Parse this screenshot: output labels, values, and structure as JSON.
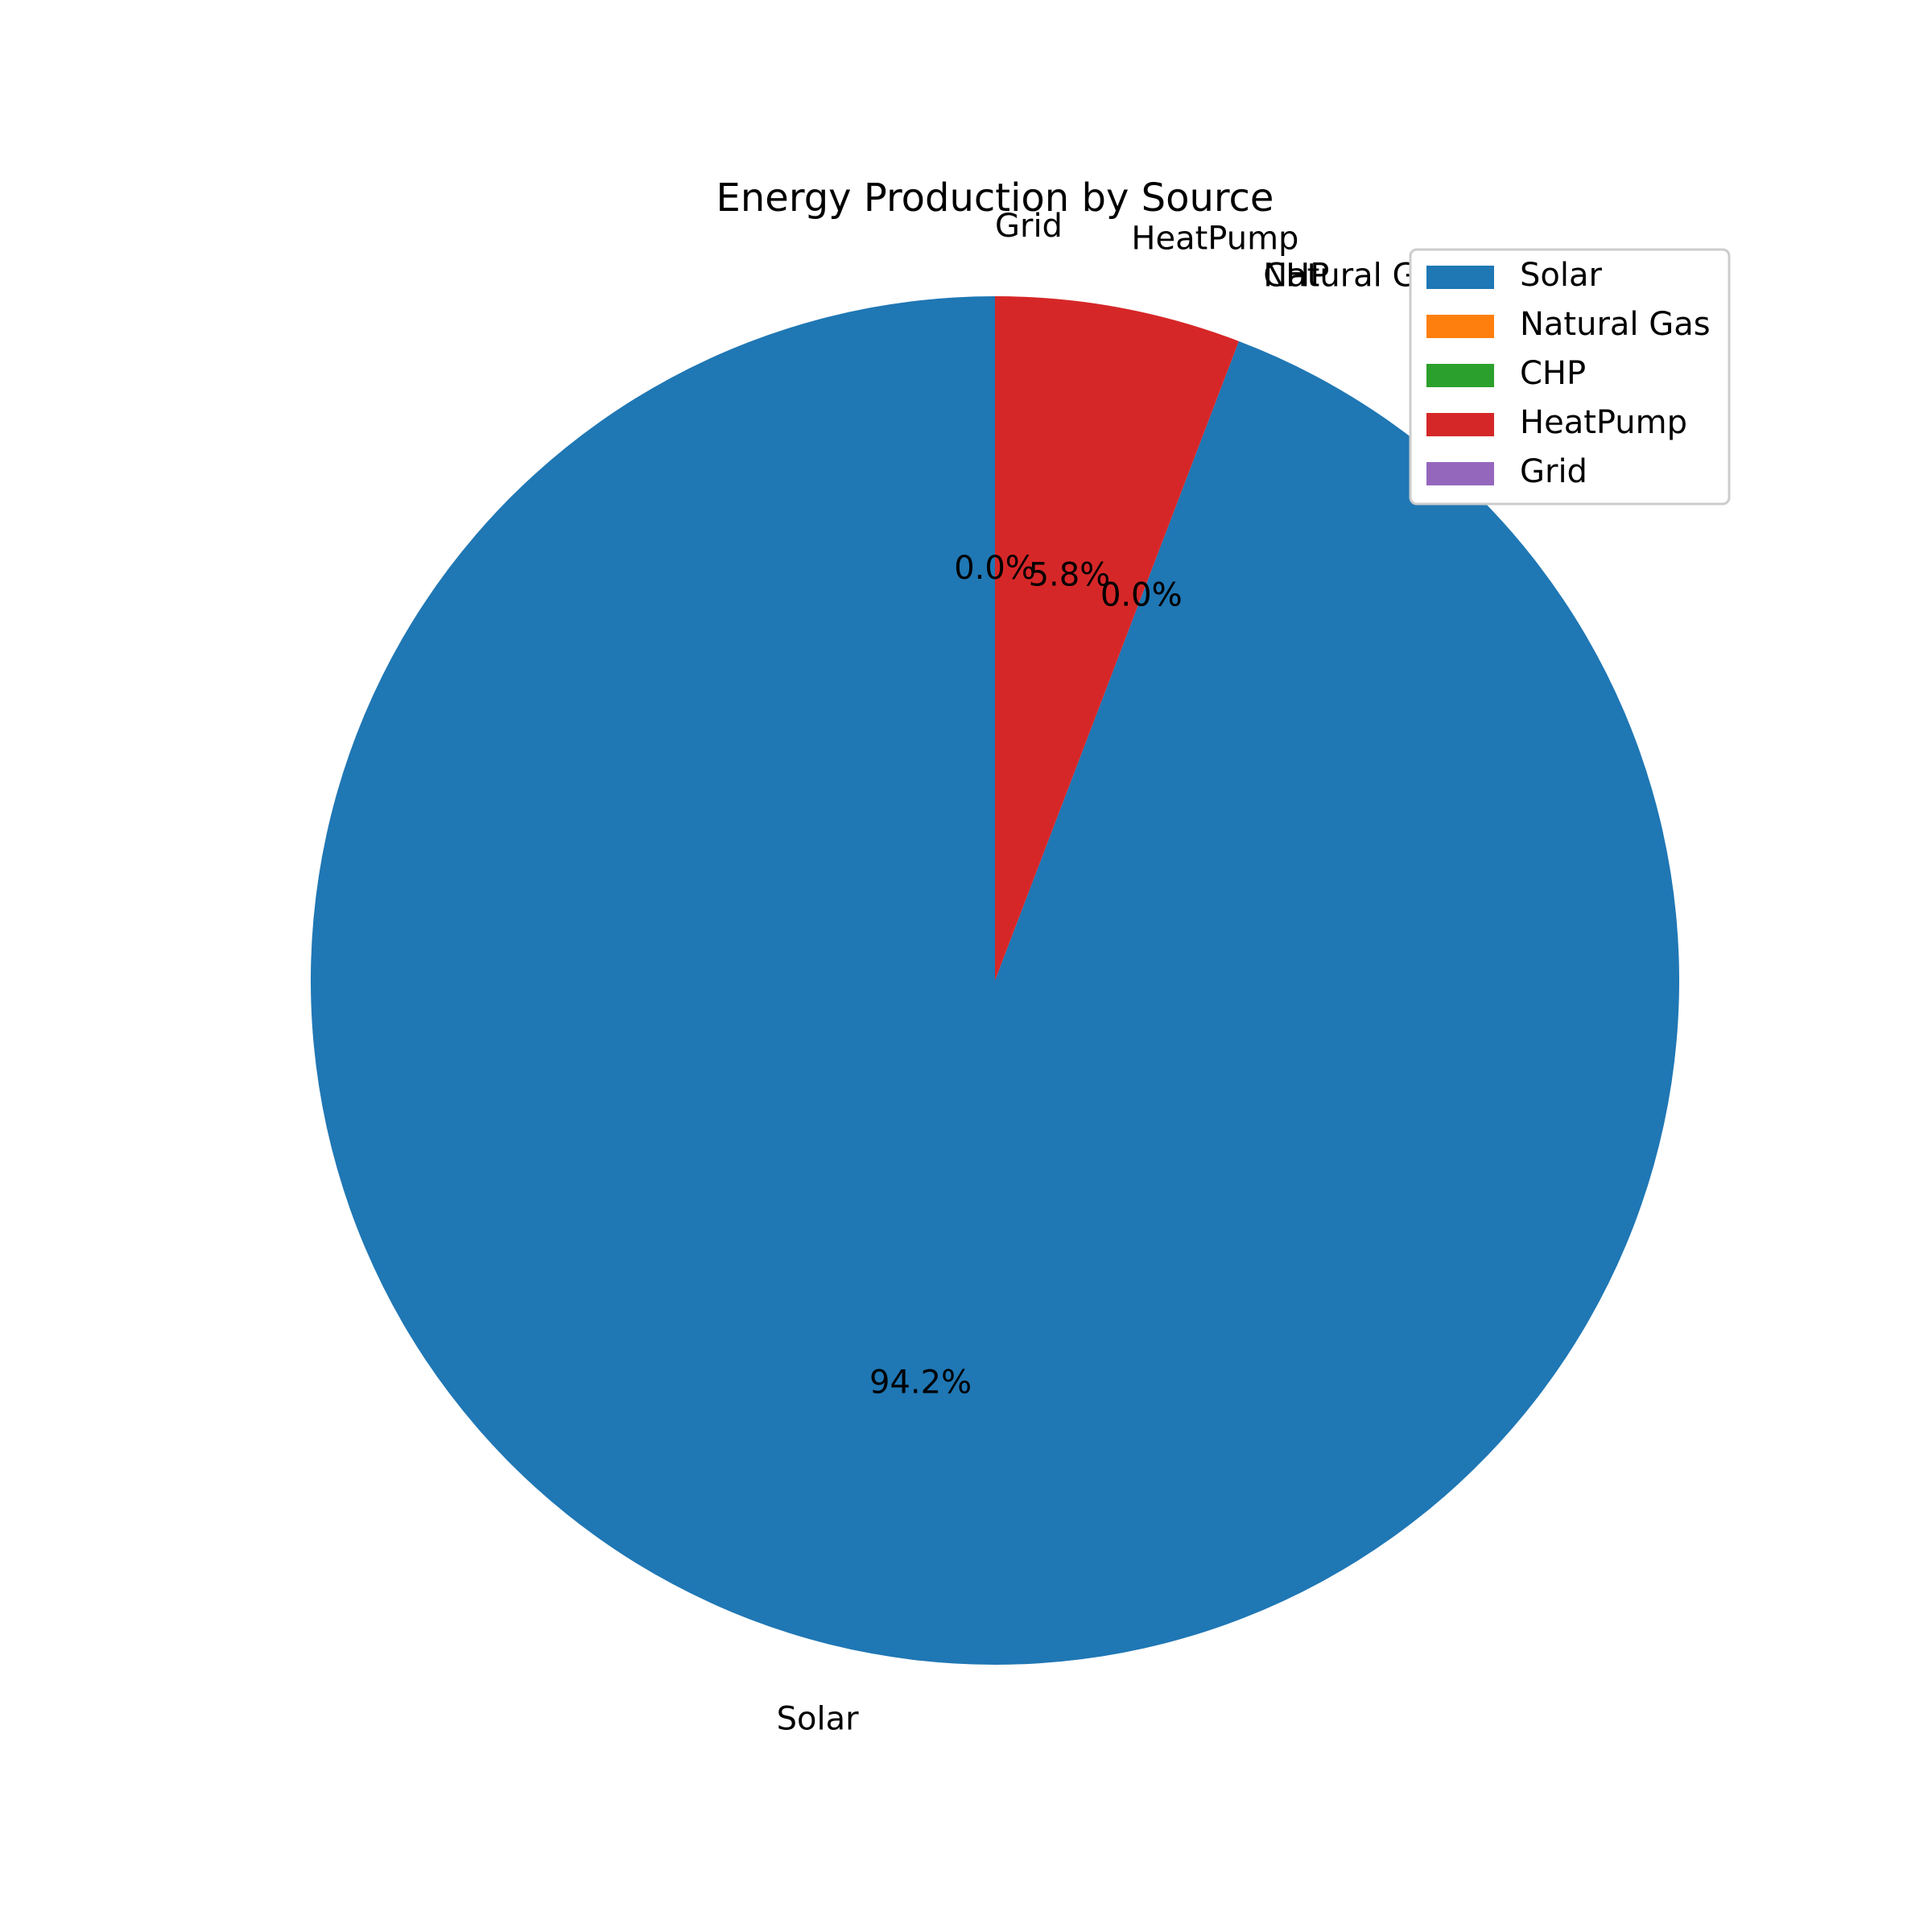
{
  "chart_data": {
    "type": "pie",
    "title": "Energy Production by Source",
    "categories": [
      "Solar",
      "Natural Gas",
      "CHP",
      "HeatPump",
      "Grid"
    ],
    "values": [
      94.2,
      0.0,
      0.0,
      5.8,
      0.0
    ],
    "percent_labels": [
      "94.2%",
      "0.0%",
      "0.0%",
      "5.8%",
      "0.0%"
    ],
    "colors": [
      "#1f77b4",
      "#ff7f0e",
      "#2ca02c",
      "#d62728",
      "#9467bd"
    ],
    "start_angle_deg": 90,
    "direction": "counterclockwise",
    "legend": {
      "position": "top-right",
      "entries": [
        "Solar",
        "Natural Gas",
        "CHP",
        "HeatPump",
        "Grid"
      ]
    }
  }
}
